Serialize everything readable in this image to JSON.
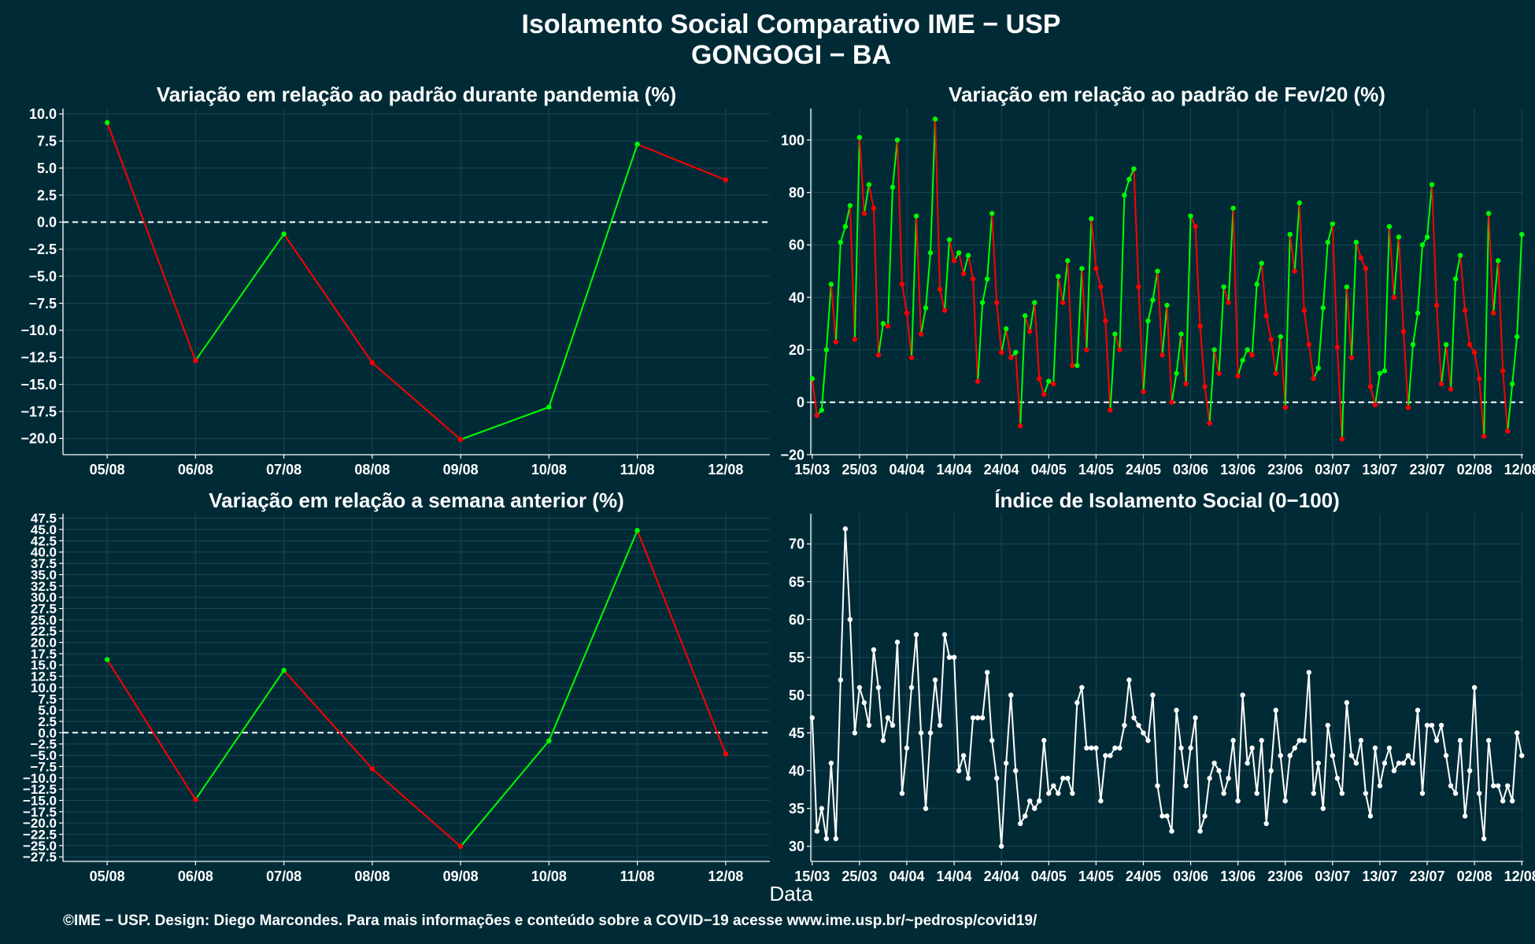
{
  "title": "Isolamento Social Comparativo IME − USP",
  "subtitle": "GONGOGI − BA",
  "xlabel": "Data",
  "footer": "©IME − USP. Design: Diego Marcondes. Para mais informações e conteúdo sobre a COVID−19 acesse www.ime.usp.br/~pedrosp/covid19/",
  "colors": {
    "background": "#002b36",
    "up": "#00ff00",
    "down": "#ff0000",
    "index": "#ffffff",
    "grid": "#1e4550",
    "axis": "#ffffff"
  },
  "chart_data": [
    {
      "id": "pandemia",
      "type": "line",
      "title": "Variação em relação ao padrão durante pandemia (%)",
      "categories": [
        "05/08",
        "06/08",
        "07/08",
        "08/08",
        "09/08",
        "10/08",
        "11/08",
        "12/08"
      ],
      "values": [
        9.2,
        -12.8,
        -1.1,
        -13.0,
        -20.1,
        -17.1,
        7.2,
        3.9
      ],
      "ylim": [
        -21.5,
        10.5
      ],
      "yticks": [
        10.0,
        7.5,
        5.0,
        2.5,
        0.0,
        -2.5,
        -5.0,
        -7.5,
        -10.0,
        -12.5,
        -15.0,
        -17.5,
        -20.0
      ],
      "ytick_labels": [
        "10.0",
        "7.5",
        "5.0",
        "2.5",
        "0.0",
        "−2.5",
        "−5.0",
        "−7.5",
        "−10.0",
        "−12.5",
        "−15.0",
        "−17.5",
        "−20.0"
      ],
      "reference_line": 0,
      "grid": true
    },
    {
      "id": "fev20",
      "type": "line",
      "title": "Variação em relação ao padrão de Fev/20 (%)",
      "x_start": "15/03",
      "xtick_labels": [
        "15/03",
        "25/03",
        "04/04",
        "14/04",
        "24/04",
        "04/05",
        "14/05",
        "24/05",
        "03/06",
        "13/06",
        "23/06",
        "03/07",
        "13/07",
        "23/07",
        "02/08",
        "12/08"
      ],
      "values": [
        9,
        -5,
        -3,
        20,
        45,
        23,
        61,
        67,
        75,
        24,
        101,
        72,
        83,
        74,
        18,
        30,
        29,
        82,
        100,
        45,
        34,
        17,
        71,
        26,
        36,
        57,
        108,
        43,
        35,
        62,
        54,
        57,
        49,
        56,
        47,
        8,
        38,
        47,
        72,
        38,
        19,
        28,
        17,
        19,
        -9,
        33,
        27,
        38,
        9,
        3,
        8,
        7,
        48,
        38,
        54,
        14,
        14,
        51,
        20,
        70,
        51,
        44,
        31,
        -3,
        26,
        20,
        79,
        85,
        89,
        44,
        4,
        31,
        39,
        50,
        18,
        37,
        0,
        11,
        26,
        7,
        71,
        67,
        29,
        6,
        -8,
        20,
        11,
        44,
        38,
        74,
        10,
        16,
        20,
        18,
        45,
        53,
        33,
        24,
        11,
        25,
        -2,
        64,
        50,
        76,
        35,
        22,
        9,
        13,
        36,
        61,
        68,
        21,
        -14,
        44,
        17,
        61,
        55,
        51,
        6,
        -1,
        11,
        12,
        67,
        40,
        63,
        27,
        -2,
        22,
        34,
        60,
        63,
        83,
        37,
        7,
        22,
        5,
        47,
        56,
        35,
        22,
        19,
        9,
        -13,
        72,
        34,
        54,
        12,
        -11,
        7,
        25,
        64
      ],
      "ylim": [
        -20,
        112
      ],
      "yticks": [
        -20,
        0,
        20,
        40,
        60,
        80,
        100
      ],
      "ytick_labels": [
        "−20",
        "0",
        "20",
        "40",
        "60",
        "80",
        "100"
      ],
      "reference_line": 0,
      "grid": true
    },
    {
      "id": "semana",
      "type": "line",
      "title": "Variação em relação a semana anterior (%)",
      "categories": [
        "05/08",
        "06/08",
        "07/08",
        "08/08",
        "09/08",
        "10/08",
        "11/08",
        "12/08"
      ],
      "values": [
        16.2,
        -14.8,
        13.8,
        -8.0,
        -25.2,
        -1.8,
        44.8,
        -4.7
      ],
      "ylim": [
        -28.5,
        48.5
      ],
      "yticks": [
        47.5,
        45.0,
        42.5,
        40.0,
        37.5,
        35.0,
        32.5,
        30.0,
        27.5,
        25.0,
        22.5,
        20.0,
        17.5,
        15.0,
        12.5,
        10.0,
        7.5,
        5.0,
        2.5,
        0.0,
        -2.5,
        -5.0,
        -7.5,
        -10.0,
        -12.5,
        -15.0,
        -17.5,
        -20.0,
        -22.5,
        -25.0,
        -27.5
      ],
      "ytick_labels": [
        "47.5",
        "45.0",
        "42.5",
        "40.0",
        "37.5",
        "35.0",
        "32.5",
        "30.0",
        "27.5",
        "25.0",
        "22.5",
        "20.0",
        "17.5",
        "15.0",
        "12.5",
        "10.0",
        "7.5",
        "5.0",
        "2.5",
        "0.0",
        "−2.5",
        "−5.0",
        "−7.5",
        "−10.0",
        "−12.5",
        "−15.0",
        "−17.5",
        "−20.0",
        "−22.5",
        "−25.0",
        "−27.5"
      ],
      "reference_line": 0,
      "grid": true
    },
    {
      "id": "indice",
      "type": "line",
      "title": "Índice de Isolamento Social (0−100)",
      "x_start": "15/03",
      "xtick_labels": [
        "15/03",
        "25/03",
        "04/04",
        "14/04",
        "24/04",
        "04/05",
        "14/05",
        "24/05",
        "03/06",
        "13/06",
        "23/06",
        "03/07",
        "13/07",
        "23/07",
        "02/08",
        "12/08"
      ],
      "values": [
        47,
        32,
        35,
        31,
        41,
        31,
        52,
        72,
        60,
        45,
        51,
        49,
        46,
        56,
        51,
        44,
        47,
        46,
        57,
        37,
        43,
        51,
        58,
        45,
        35,
        45,
        52,
        46,
        58,
        55,
        55,
        40,
        42,
        39,
        47,
        47,
        47,
        53,
        44,
        39,
        30,
        41,
        50,
        40,
        33,
        34,
        36,
        35,
        36,
        44,
        37,
        38,
        37,
        39,
        39,
        37,
        49,
        51,
        43,
        43,
        43,
        36,
        42,
        42,
        43,
        43,
        46,
        52,
        47,
        46,
        45,
        44,
        50,
        38,
        34,
        34,
        32,
        48,
        43,
        38,
        43,
        47,
        32,
        34,
        39,
        41,
        40,
        37,
        39,
        44,
        36,
        50,
        41,
        43,
        37,
        44,
        33,
        40,
        48,
        42,
        36,
        42,
        43,
        44,
        44,
        53,
        37,
        41,
        35,
        46,
        42,
        39,
        37,
        49,
        42,
        41,
        44,
        37,
        34,
        43,
        38,
        41,
        43,
        40,
        41,
        41,
        42,
        41,
        48,
        37,
        46,
        46,
        44,
        46,
        42,
        38,
        37,
        44,
        34,
        40,
        51,
        37,
        31,
        44,
        38,
        38,
        36,
        38,
        36,
        45,
        42
      ],
      "ylim": [
        28,
        74
      ],
      "yticks": [
        30,
        35,
        40,
        45,
        50,
        55,
        60,
        65,
        70
      ],
      "ytick_labels": [
        "30",
        "35",
        "40",
        "45",
        "50",
        "55",
        "60",
        "65",
        "70"
      ],
      "grid": true
    }
  ]
}
